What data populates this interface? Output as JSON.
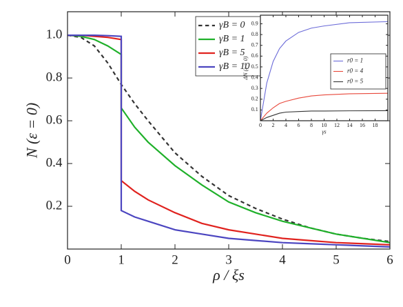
{
  "chart_data": [
    {
      "type": "line",
      "xlabel": "ρ / ξs",
      "ylabel": "N (ε = 0)",
      "x": [
        0,
        0.25,
        0.5,
        0.75,
        1,
        1,
        1.25,
        1.5,
        2,
        2.5,
        3,
        3.5,
        4,
        4.5,
        5,
        5.5,
        6
      ],
      "xlim": [
        0,
        6
      ],
      "xticks": [
        0,
        1,
        2,
        3,
        4,
        5,
        6
      ],
      "ylim": [
        0,
        1.11
      ],
      "yticks": [
        0.2,
        0.4,
        0.6,
        {
          "value": 0.8,
          "label": "0.8"
        },
        {
          "value": 1,
          "label": "1.0"
        }
      ],
      "legend": "upper center",
      "series": [
        {
          "name": "γB = 0",
          "color": "#333333",
          "style": "dashed",
          "values": [
            1,
            0.99,
            0.95,
            0.87,
            0.77,
            0.77,
            0.68,
            0.6,
            0.45,
            0.34,
            0.25,
            0.19,
            0.14,
            0.1,
            0.07,
            0.05,
            0.035
          ]
        },
        {
          "name": "γB = 1",
          "color": "#1fb02a",
          "style": "solid",
          "values": [
            1,
            0.995,
            0.98,
            0.95,
            0.91,
            0.66,
            0.57,
            0.5,
            0.39,
            0.3,
            0.22,
            0.17,
            0.13,
            0.1,
            0.07,
            0.05,
            0.03
          ]
        },
        {
          "name": "γB = 5",
          "color": "#e0221e",
          "style": "solid",
          "values": [
            1,
            1,
            0.995,
            0.99,
            0.98,
            0.32,
            0.27,
            0.23,
            0.17,
            0.12,
            0.09,
            0.07,
            0.05,
            0.04,
            0.03,
            0.025,
            0.02
          ]
        },
        {
          "name": "γB = 10",
          "color": "#4b45c0",
          "style": "solid",
          "values": [
            1,
            1,
            1,
            0.998,
            0.995,
            0.18,
            0.15,
            0.13,
            0.09,
            0.07,
            0.05,
            0.04,
            0.03,
            0.025,
            0.02,
            0.015,
            0.01
          ]
        }
      ]
    },
    {
      "type": "line",
      "xlabel": "γs",
      "ylabel": "ΔN (ε = 0)",
      "x": [
        0,
        1,
        2,
        3,
        4,
        6,
        8,
        10,
        14,
        20
      ],
      "xlim": [
        0,
        20
      ],
      "xticks": [
        0,
        2,
        4,
        6,
        8,
        10,
        12,
        14,
        16,
        18
      ],
      "ylim": [
        0,
        0.98
      ],
      "yticks": [
        0.1,
        0.2,
        0.3,
        0.4,
        0.5,
        0.6,
        0.7,
        0.8,
        0.9
      ],
      "legend": "center right",
      "series": [
        {
          "name": "r0 = 1",
          "color": "#6a6ad8",
          "style": "solid",
          "values": [
            0,
            0.35,
            0.55,
            0.67,
            0.74,
            0.82,
            0.86,
            0.88,
            0.91,
            0.92
          ]
        },
        {
          "name": "r0 = 4",
          "color": "#e8473a",
          "style": "solid",
          "values": [
            0,
            0.07,
            0.12,
            0.16,
            0.18,
            0.21,
            0.23,
            0.24,
            0.25,
            0.255
          ]
        },
        {
          "name": "r0 = 5",
          "color": "#333333",
          "style": "solid",
          "values": [
            0,
            0.03,
            0.05,
            0.07,
            0.08,
            0.085,
            0.09,
            0.09,
            0.092,
            0.093
          ]
        }
      ]
    }
  ]
}
